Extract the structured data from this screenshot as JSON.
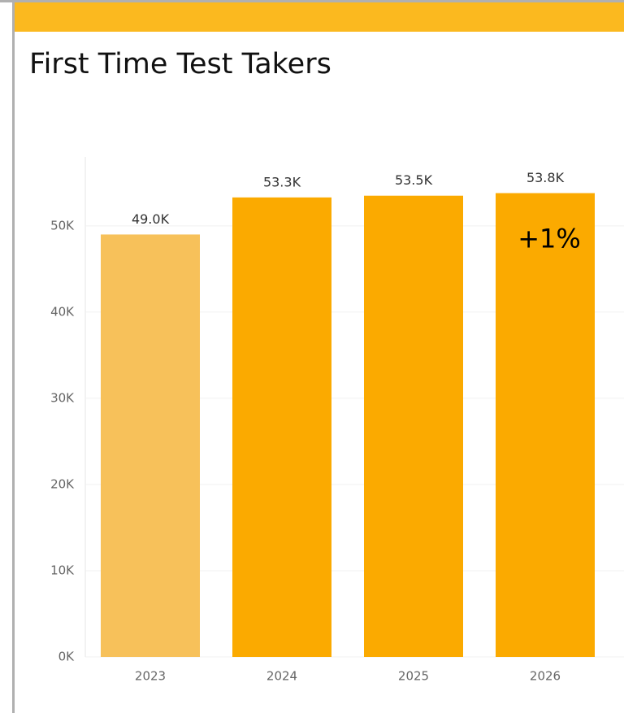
{
  "chart_data": {
    "type": "bar",
    "title": "First Time Test Takers",
    "categories": [
      "2023",
      "2024",
      "2025",
      "2026"
    ],
    "values": [
      49000,
      53300,
      53500,
      53800
    ],
    "value_labels": [
      "49.0K",
      "53.3K",
      "53.5K",
      "53.8K"
    ],
    "colors": [
      "#f7c15a",
      "#fbaa00",
      "#fbaa00",
      "#fbaa00"
    ],
    "annotation": "+1%",
    "ylim": [
      0,
      58000
    ],
    "yticks": [
      {
        "value": 0,
        "label": "0K"
      },
      {
        "value": 10000,
        "label": "10K"
      },
      {
        "value": 20000,
        "label": "20K"
      },
      {
        "value": 30000,
        "label": "30K"
      },
      {
        "value": 40000,
        "label": "40K"
      },
      {
        "value": 50000,
        "label": "50K"
      }
    ],
    "grid": true
  }
}
